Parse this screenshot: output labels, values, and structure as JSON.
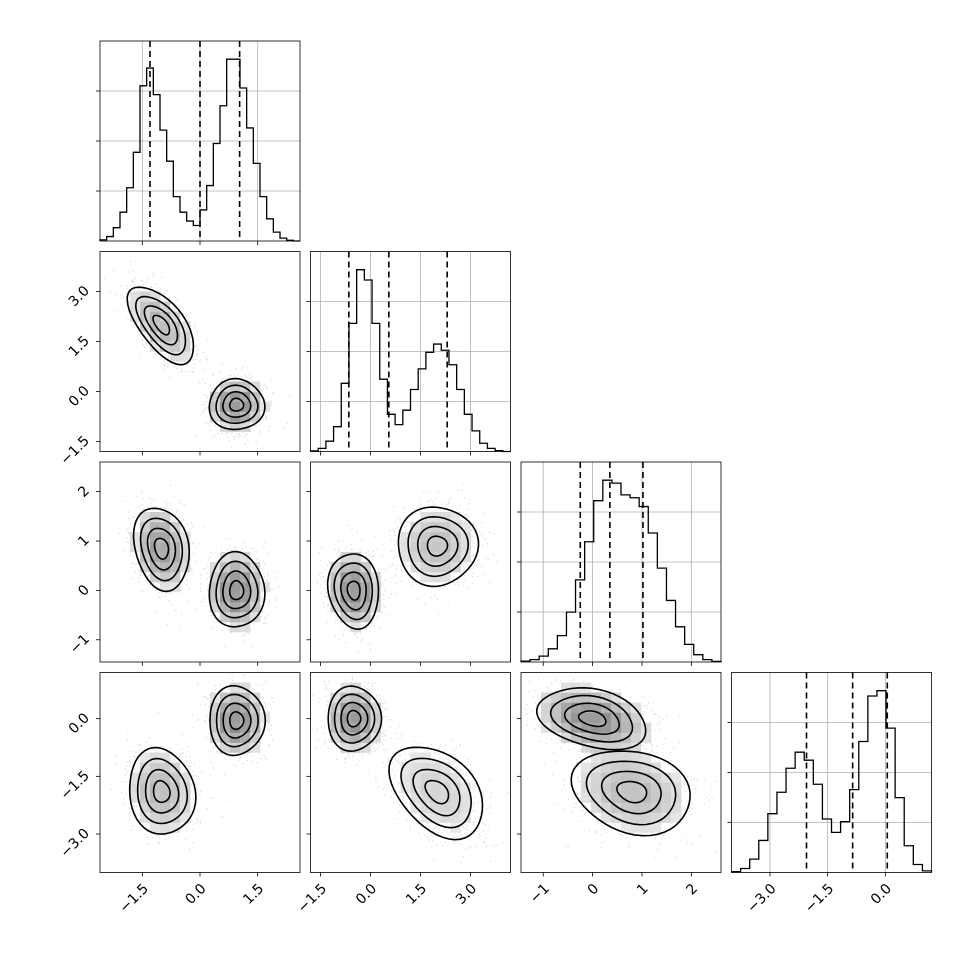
{
  "chart_data": {
    "type": "corner",
    "parameters": 4,
    "axes": [
      {
        "index": 0,
        "range": [
          -2.6,
          2.6
        ],
        "ticks": [
          -1.5,
          0.0,
          1.5
        ],
        "tick_labels": [
          "−1.5",
          "0.0",
          "1.5"
        ],
        "quantiles": [
          -1.3,
          0.0,
          1.03
        ],
        "histogram": [
          0.005,
          0.02,
          0.06,
          0.13,
          0.24,
          0.4,
          0.7,
          0.78,
          0.66,
          0.5,
          0.36,
          0.2,
          0.13,
          0.09,
          0.07,
          0.14,
          0.25,
          0.44,
          0.61,
          0.82,
          0.82,
          0.69,
          0.51,
          0.35,
          0.2,
          0.1,
          0.04,
          0.013,
          0.003,
          0.0
        ]
      },
      {
        "index": 1,
        "range": [
          -1.8,
          4.2
        ],
        "ticks": [
          -1.5,
          0.0,
          1.5,
          3.0
        ],
        "tick_labels": [
          "−1.5",
          "0.0",
          "1.5",
          "3.0"
        ],
        "quantiles": [
          -0.65,
          0.55,
          2.3
        ],
        "histogram": [
          0.003,
          0.015,
          0.05,
          0.12,
          0.33,
          0.62,
          0.88,
          0.83,
          0.62,
          0.35,
          0.18,
          0.13,
          0.2,
          0.3,
          0.4,
          0.48,
          0.52,
          0.49,
          0.42,
          0.3,
          0.18,
          0.1,
          0.04,
          0.015,
          0.004,
          0.0
        ]
      },
      {
        "index": 2,
        "range": [
          -1.45,
          2.6
        ],
        "ticks": [
          -1,
          0,
          1,
          2
        ],
        "tick_labels": [
          "−1",
          "0",
          "1",
          "2"
        ],
        "quantiles": [
          -0.25,
          0.35,
          1.02
        ],
        "histogram": [
          0.003,
          0.008,
          0.02,
          0.045,
          0.09,
          0.17,
          0.28,
          0.41,
          0.55,
          0.62,
          0.61,
          0.57,
          0.56,
          0.53,
          0.44,
          0.32,
          0.21,
          0.12,
          0.06,
          0.025,
          0.008,
          0.002
        ]
      },
      {
        "index": 3,
        "range": [
          -4.0,
          1.2
        ],
        "ticks": [
          -3.0,
          -1.5,
          0.0
        ],
        "tick_labels": [
          "−3.0",
          "−1.5",
          "0.0"
        ],
        "quantiles": [
          -2.05,
          -0.85,
          0.05
        ],
        "histogram": [
          0.003,
          0.015,
          0.05,
          0.12,
          0.22,
          0.3,
          0.39,
          0.45,
          0.42,
          0.33,
          0.2,
          0.15,
          0.19,
          0.31,
          0.49,
          0.66,
          0.68,
          0.54,
          0.28,
          0.1,
          0.03,
          0.006
        ]
      }
    ],
    "pairs": [
      {
        "x": 0,
        "y": 1,
        "modes": [
          {
            "mx": -1.0,
            "my": 2.0,
            "sx": 0.43,
            "sy": 0.58,
            "rho": -0.62,
            "w": 0.48
          },
          {
            "mx": 0.95,
            "my": -0.4,
            "sx": 0.36,
            "sy": 0.38,
            "rho": 0.0,
            "w": 0.52
          }
        ]
      },
      {
        "x": 0,
        "y": 2,
        "modes": [
          {
            "mx": -1.0,
            "my": 0.85,
            "sx": 0.36,
            "sy": 0.42,
            "rho": -0.2,
            "w": 0.48
          },
          {
            "mx": 0.95,
            "my": 0.0,
            "sx": 0.36,
            "sy": 0.38,
            "rho": 0.0,
            "w": 0.52
          }
        ]
      },
      {
        "x": 1,
        "y": 2,
        "modes": [
          {
            "mx": -0.5,
            "my": 0.0,
            "sx": 0.38,
            "sy": 0.38,
            "rho": -0.1,
            "w": 0.52
          },
          {
            "mx": 2.0,
            "my": 0.9,
            "sx": 0.6,
            "sy": 0.4,
            "rho": 0.0,
            "w": 0.48
          }
        ]
      },
      {
        "x": 0,
        "y": 3,
        "modes": [
          {
            "mx": 0.95,
            "my": -0.05,
            "sx": 0.36,
            "sy": 0.45,
            "rho": 0.0,
            "w": 0.52
          },
          {
            "mx": -1.0,
            "my": -1.9,
            "sx": 0.43,
            "sy": 0.56,
            "rho": -0.1,
            "w": 0.48
          }
        ]
      },
      {
        "x": 1,
        "y": 3,
        "modes": [
          {
            "mx": -0.5,
            "my": 0.0,
            "sx": 0.4,
            "sy": 0.42,
            "rho": 0.0,
            "w": 0.52
          },
          {
            "mx": 2.0,
            "my": -1.9,
            "sx": 0.7,
            "sy": 0.6,
            "rho": -0.4,
            "w": 0.48
          }
        ]
      },
      {
        "x": 2,
        "y": 3,
        "modes": [
          {
            "mx": 0.0,
            "my": 0.0,
            "sx": 0.55,
            "sy": 0.4,
            "rho": -0.3,
            "w": 0.52
          },
          {
            "mx": 0.8,
            "my": -1.9,
            "sx": 0.6,
            "sy": 0.55,
            "rho": -0.2,
            "w": 0.48
          }
        ]
      }
    ]
  }
}
